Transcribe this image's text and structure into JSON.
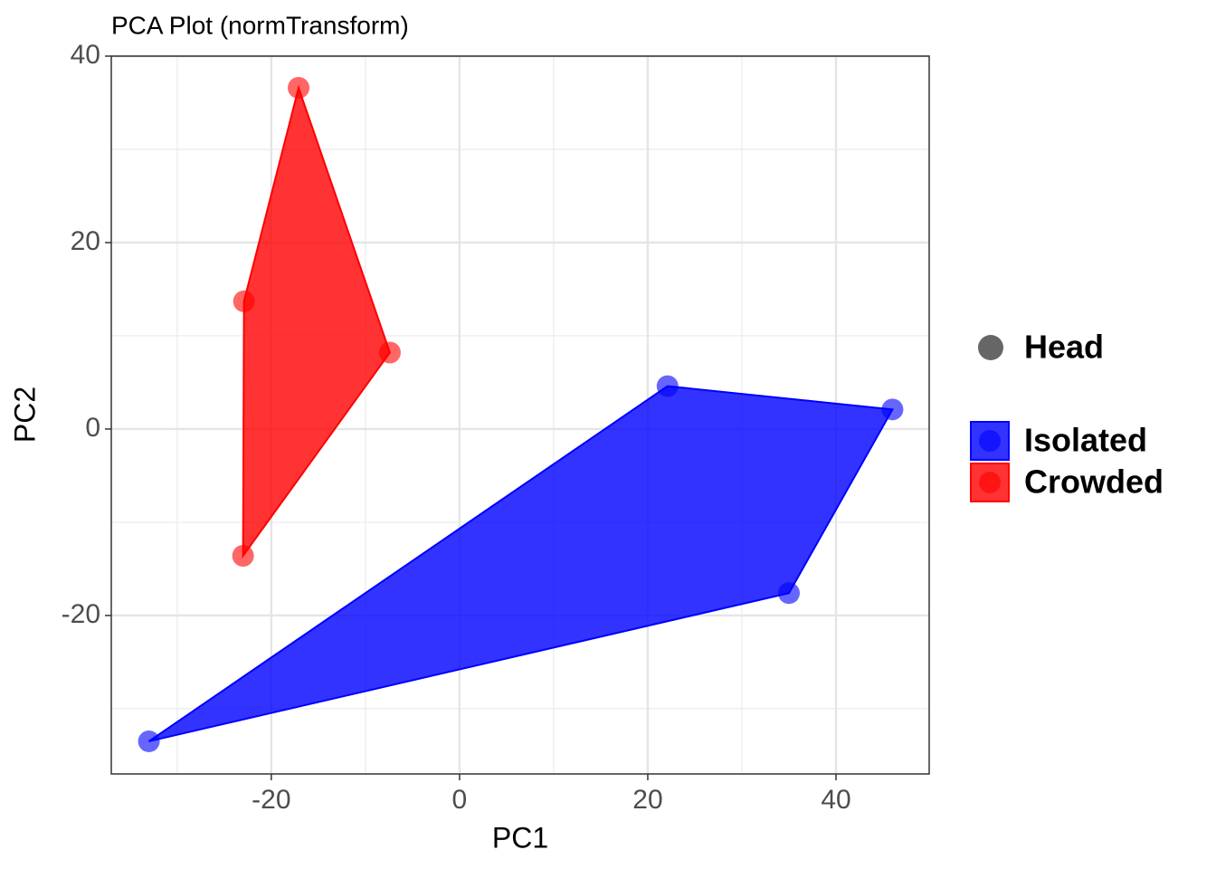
{
  "chart_data": {
    "type": "scatter",
    "title": "PCA Plot (normTransform)",
    "x_label": "PC1",
    "y_label": "PC2",
    "shape_legend": "Head",
    "shape_color": "#666666",
    "series": [
      {
        "name": "Isolated",
        "color": "#0000ff",
        "x": [
          22.1,
          46.0,
          35.0,
          -33.0
        ],
        "values": [
          4.6,
          2.1,
          -17.6,
          -33.5
        ]
      },
      {
        "name": "Crowded",
        "color": "#ff0000",
        "x": [
          -17.1,
          -7.4,
          -23.0,
          -22.9
        ],
        "values": [
          36.6,
          8.2,
          -13.6,
          13.7
        ]
      }
    ],
    "xlim": [
      -37.0,
      49.9
    ],
    "ylim": [
      -37.0,
      40.0
    ],
    "xticks": [
      -20,
      0,
      20,
      40
    ],
    "yticks": [
      -20,
      0,
      20,
      40
    ],
    "x_minor_grid": [
      -30,
      -10,
      10,
      30
    ],
    "y_minor_grid": [
      -30,
      -10,
      10,
      30
    ],
    "grid": true
  }
}
